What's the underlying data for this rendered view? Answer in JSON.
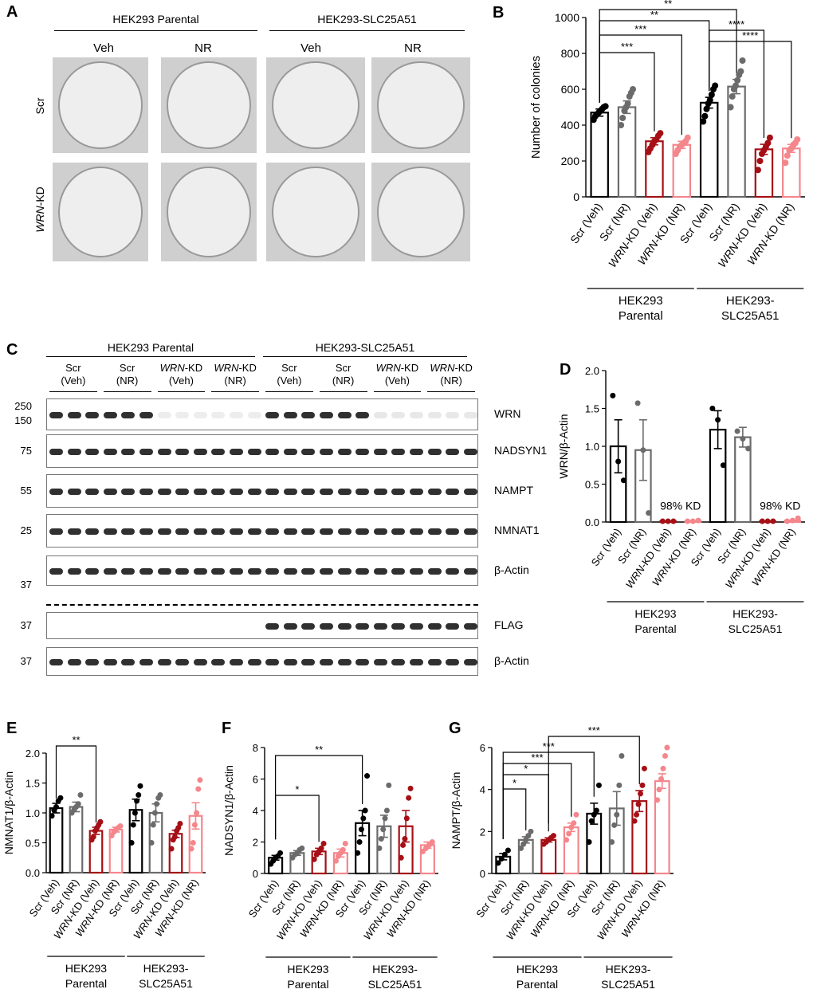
{
  "panels": {
    "A": {
      "letter": "A",
      "group_left": "HEK293 Parental",
      "group_right": "HEK293-SLC25A51",
      "col_labels": [
        "Veh",
        "NR",
        "Veh",
        "NR"
      ],
      "row_scr": "Scr",
      "row_kd_italic": "WRN",
      "row_kd_suffix": "-KD"
    },
    "C": {
      "letter": "C",
      "group_left": "HEK293 Parental",
      "group_right": "HEK293-SLC25A51",
      "lanes": [
        {
          "l1": "Scr",
          "l2": "(Veh)"
        },
        {
          "l1": "Scr",
          "l2": "(NR)"
        },
        {
          "l1_it": "WRN",
          "l1": "-KD",
          "l2": "(Veh)"
        },
        {
          "l1_it": "WRN",
          "l1": "-KD",
          "l2": "(NR)"
        },
        {
          "l1": "Scr",
          "l2": "(Veh)"
        },
        {
          "l1": "Scr",
          "l2": "(NR)"
        },
        {
          "l1_it": "WRN",
          "l1": "-KD",
          "l2": "(Veh)"
        },
        {
          "l1_it": "WRN",
          "l1": "-KD",
          "l2": "(NR)"
        }
      ],
      "blots": [
        {
          "label": "WRN",
          "mw": [
            "250",
            "150"
          ]
        },
        {
          "label": "NADSYN1",
          "mw": [
            "75"
          ]
        },
        {
          "label": "NAMPT",
          "mw": [
            "55"
          ]
        },
        {
          "label": "NMNAT1",
          "mw": [
            "25"
          ]
        },
        {
          "label": "β-Actin",
          "mw": [
            "37"
          ]
        },
        {
          "label": "FLAG",
          "mw": [
            "37"
          ]
        },
        {
          "label": "β-Actin",
          "mw": [
            "37"
          ]
        }
      ]
    }
  },
  "colors": {
    "scr_veh": "#000000",
    "scr_nr": "#6b6b6b",
    "kd_veh": "#a50f15",
    "kd_nr": "#f4868c"
  },
  "chart_data": [
    {
      "panel": "B",
      "type": "bar",
      "categories": [
        "Scr (Veh)",
        "Scr (NR)",
        "WRN-KD (Veh)",
        "WRN-KD (NR)",
        "Scr (Veh)",
        "Scr (NR)",
        "WRN-KD (Veh)",
        "WRN-KD (NR)"
      ],
      "groups": [
        "HEK293\nParental",
        "HEK293-\nSLC25A51"
      ],
      "values": [
        470,
        500,
        310,
        290,
        525,
        615,
        265,
        270
      ],
      "errors": [
        20,
        35,
        20,
        20,
        30,
        40,
        28,
        22
      ],
      "points": [
        [
          430,
          450,
          460,
          470,
          480,
          490,
          500,
          505
        ],
        [
          400,
          440,
          480,
          500,
          520,
          560,
          580,
          600
        ],
        [
          250,
          270,
          290,
          310,
          320,
          340,
          355
        ],
        [
          240,
          260,
          280,
          290,
          300,
          310,
          330
        ],
        [
          420,
          450,
          490,
          520,
          540,
          570,
          600,
          620
        ],
        [
          500,
          560,
          600,
          620,
          650,
          680,
          700,
          760
        ],
        [
          150,
          200,
          240,
          260,
          280,
          300,
          330
        ],
        [
          190,
          230,
          260,
          270,
          290,
          300,
          320
        ]
      ],
      "ylabel": "Number of colonies",
      "ylim": [
        0,
        1000
      ],
      "yticks": [
        0,
        200,
        400,
        600,
        800,
        1000
      ],
      "significance": [
        {
          "from": 0,
          "to": 2,
          "label": "***"
        },
        {
          "from": 0,
          "to": 3,
          "label": "***"
        },
        {
          "from": 0,
          "to": 4,
          "label": "**"
        },
        {
          "from": 0,
          "to": 5,
          "label": "**"
        },
        {
          "from": 4,
          "to": 6,
          "label": "****"
        },
        {
          "from": 4,
          "to": 7,
          "label": "****"
        }
      ]
    },
    {
      "panel": "D",
      "type": "bar",
      "categories": [
        "Scr (Veh)",
        "Scr (NR)",
        "WRN-KD (Veh)",
        "WRN-KD (NR)",
        "Scr (Veh)",
        "Scr (NR)",
        "WRN-KD (Veh)",
        "WRN-KD (NR)"
      ],
      "groups": [
        "HEK293\nParental",
        "HEK293-\nSLC25A51"
      ],
      "values": [
        1.0,
        0.95,
        0.01,
        0.01,
        1.22,
        1.12,
        0.01,
        0.02
      ],
      "errors": [
        0.35,
        0.4,
        0,
        0,
        0.25,
        0.13,
        0,
        0
      ],
      "points": [
        [
          1.67,
          0.8,
          0.55
        ],
        [
          1.57,
          0.95,
          0.12
        ],
        [
          0.01,
          0.01,
          0.01
        ],
        [
          0.01,
          0.01,
          0.02
        ],
        [
          1.5,
          1.35,
          0.75
        ],
        [
          1.2,
          1.1,
          0.97
        ],
        [
          0.01,
          0.01,
          0.01
        ],
        [
          0.01,
          0.02,
          0.05
        ]
      ],
      "ylabel": "WRN/β-Actin",
      "ylim": [
        0,
        2.0
      ],
      "yticks": [
        0.0,
        0.5,
        1.0,
        1.5,
        2.0
      ],
      "annotations": [
        {
          "at": 2.5,
          "y": 0.12,
          "text": "98% KD"
        },
        {
          "at": 6.5,
          "y": 0.12,
          "text": "98% KD"
        }
      ]
    },
    {
      "panel": "E",
      "type": "bar",
      "categories": [
        "Scr (Veh)",
        "Scr (NR)",
        "WRN-KD (Veh)",
        "WRN-KD (NR)",
        "Scr (Veh)",
        "Scr (NR)",
        "WRN-KD (Veh)",
        "WRN-KD (NR)"
      ],
      "groups": [
        "HEK293\nParental",
        "HEK293-\nSLC25A51"
      ],
      "values": [
        1.08,
        1.1,
        0.7,
        0.72,
        1.05,
        1.0,
        0.65,
        0.95
      ],
      "errors": [
        0.08,
        0.08,
        0.06,
        0.04,
        0.18,
        0.15,
        0.06,
        0.22
      ],
      "points": [
        [
          0.95,
          1.05,
          1.1,
          1.2,
          1.25
        ],
        [
          1.0,
          1.05,
          1.1,
          1.15,
          1.3
        ],
        [
          0.55,
          0.6,
          0.7,
          0.75,
          0.8,
          0.85
        ],
        [
          0.62,
          0.68,
          0.72,
          0.75,
          0.78
        ],
        [
          0.5,
          0.8,
          1.0,
          1.2,
          1.3,
          1.45
        ],
        [
          0.5,
          0.8,
          1.0,
          1.15,
          1.25,
          1.3
        ],
        [
          0.4,
          0.55,
          0.6,
          0.7,
          0.75,
          0.82
        ],
        [
          0.4,
          0.5,
          0.8,
          1.0,
          1.4,
          1.55
        ]
      ],
      "ylabel": "NMNAT1/β-Actin",
      "ylim": [
        0,
        2.0
      ],
      "yticks": [
        0.0,
        0.5,
        1.0,
        1.5,
        2.0
      ],
      "significance": [
        {
          "from": 0,
          "to": 2,
          "label": "**"
        }
      ]
    },
    {
      "panel": "F",
      "type": "bar",
      "categories": [
        "Scr (Veh)",
        "Scr (NR)",
        "WRN-KD (Veh)",
        "WRN-KD (NR)",
        "Scr (Veh)",
        "Scr (NR)",
        "WRN-KD (Veh)",
        "WRN-KD (NR)"
      ],
      "groups": [
        "HEK293\nParental",
        "HEK293-\nSLC25A51"
      ],
      "values": [
        1.0,
        1.3,
        1.4,
        1.3,
        3.2,
        3.0,
        3.0,
        1.8
      ],
      "errors": [
        0.15,
        0.15,
        0.2,
        0.25,
        0.8,
        0.7,
        1.0,
        0.2
      ],
      "points": [
        [
          0.6,
          0.8,
          1.0,
          1.1,
          1.3
        ],
        [
          1.0,
          1.2,
          1.3,
          1.5,
          1.6
        ],
        [
          0.9,
          1.2,
          1.4,
          1.6,
          1.9
        ],
        [
          0.8,
          1.1,
          1.3,
          1.5,
          1.9
        ],
        [
          1.3,
          2.0,
          2.8,
          3.5,
          4.0,
          6.2
        ],
        [
          1.6,
          2.2,
          2.8,
          3.5,
          4.0,
          5.6
        ],
        [
          1.0,
          1.8,
          2.2,
          3.5,
          4.8,
          5.4
        ],
        [
          1.4,
          1.6,
          1.8,
          2.0
        ]
      ],
      "ylabel": "NADSYN1/β-Actin",
      "ylim": [
        0,
        8
      ],
      "yticks": [
        0,
        2,
        4,
        6,
        8
      ],
      "significance": [
        {
          "from": 0,
          "to": 2,
          "label": "*"
        },
        {
          "from": 0,
          "to": 4,
          "label": "**"
        }
      ]
    },
    {
      "panel": "G",
      "type": "bar",
      "categories": [
        "Scr (Veh)",
        "Scr (NR)",
        "WRN-KD (Veh)",
        "WRN-KD (NR)",
        "Scr (Veh)",
        "Scr (NR)",
        "WRN-KD (Veh)",
        "WRN-KD (NR)"
      ],
      "groups": [
        "HEK293\nParental",
        "HEK293-\nSLC25A51"
      ],
      "values": [
        0.8,
        1.6,
        1.6,
        2.2,
        2.85,
        3.1,
        3.45,
        4.4
      ],
      "errors": [
        0.15,
        0.15,
        0.1,
        0.2,
        0.5,
        0.8,
        0.5,
        0.35
      ],
      "points": [
        [
          0.5,
          0.7,
          0.9,
          1.1
        ],
        [
          1.2,
          1.4,
          1.6,
          1.8,
          2.0
        ],
        [
          1.4,
          1.5,
          1.6,
          1.7,
          1.8
        ],
        [
          1.6,
          1.9,
          2.2,
          2.4,
          2.8
        ],
        [
          1.5,
          2.5,
          2.8,
          3.0,
          4.2
        ],
        [
          1.5,
          2.3,
          2.8,
          4.2,
          5.6
        ],
        [
          2.5,
          2.8,
          3.3,
          3.8,
          4.2,
          5.0
        ],
        [
          3.5,
          4.0,
          4.5,
          5.0,
          5.6,
          6.0
        ]
      ],
      "ylabel": "NAMPT/β-Actin",
      "ylim": [
        0,
        6
      ],
      "yticks": [
        0,
        2,
        4,
        6
      ],
      "significance": [
        {
          "from": 0,
          "to": 1,
          "label": "*"
        },
        {
          "from": 0,
          "to": 2,
          "label": "*"
        },
        {
          "from": 0,
          "to": 3,
          "label": "***"
        },
        {
          "from": 0,
          "to": 4,
          "label": "***"
        },
        {
          "from": 2,
          "to": 6,
          "label": "***"
        }
      ]
    }
  ]
}
